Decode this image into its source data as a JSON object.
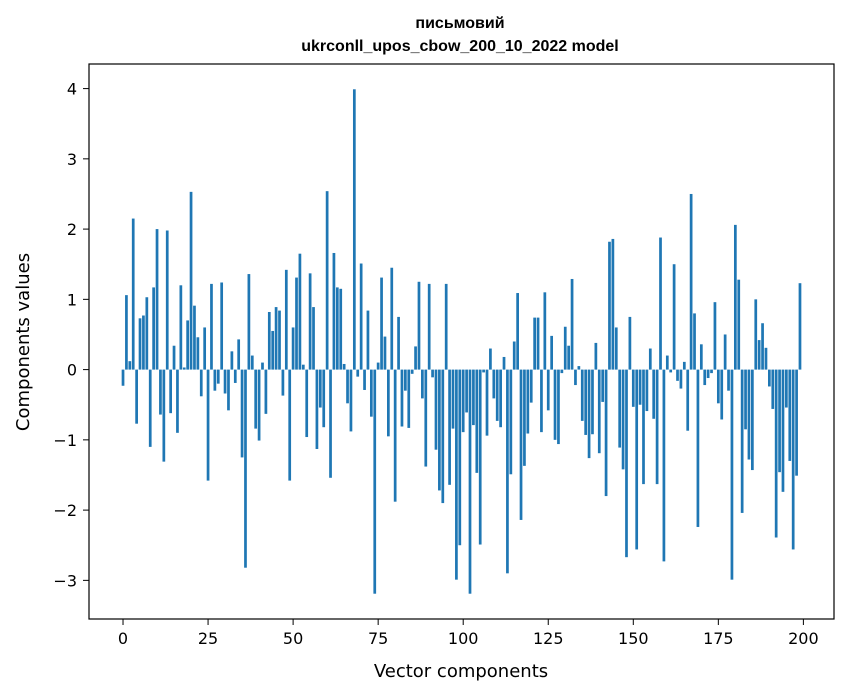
{
  "chart_data": {
    "type": "bar",
    "title_line1": "письмовий",
    "title_line2": "ukrconll_upos_cbow_200_10_2022 model",
    "xlabel": "Vector components",
    "ylabel": "Components values",
    "xlim": [
      -10.0,
      209.0
    ],
    "ylim": [
      -3.55,
      4.35
    ],
    "xticks": [
      0,
      25,
      50,
      75,
      100,
      125,
      150,
      175,
      200
    ],
    "yticks": [
      -3,
      -2,
      -1,
      0,
      1,
      2,
      3,
      4
    ],
    "ytick_labels": [
      "−3",
      "−2",
      "−1",
      "0",
      "1",
      "2",
      "3",
      "4"
    ],
    "bar_color": "#1f77b4",
    "values": [
      -0.23,
      1.06,
      0.12,
      2.15,
      -0.77,
      0.73,
      0.77,
      1.03,
      -1.1,
      1.17,
      2.0,
      -0.64,
      -1.31,
      1.98,
      -0.62,
      0.34,
      -0.9,
      1.2,
      0.03,
      0.7,
      2.53,
      0.91,
      0.46,
      -0.38,
      0.6,
      -1.58,
      1.22,
      -0.3,
      -0.2,
      1.24,
      -0.34,
      -0.58,
      0.26,
      -0.19,
      0.43,
      -1.25,
      -2.82,
      1.36,
      0.2,
      -0.84,
      -1.01,
      0.1,
      -0.63,
      0.82,
      0.55,
      0.89,
      0.84,
      -0.37,
      1.42,
      -1.58,
      0.6,
      1.31,
      1.65,
      0.07,
      -0.96,
      1.37,
      0.89,
      -1.13,
      -0.54,
      -0.82,
      2.54,
      -1.54,
      1.66,
      1.17,
      1.15,
      0.08,
      -0.48,
      -0.88,
      3.99,
      -0.1,
      1.51,
      -0.29,
      0.84,
      -0.67,
      -3.19,
      0.1,
      1.31,
      0.47,
      -0.95,
      1.45,
      -1.88,
      0.75,
      -0.81,
      -0.3,
      -0.83,
      -0.06,
      0.33,
      1.25,
      -0.41,
      -1.38,
      1.22,
      -0.11,
      -1.14,
      -1.72,
      -1.9,
      1.22,
      -1.64,
      -0.84,
      -2.99,
      -2.5,
      -0.89,
      -0.61,
      -3.19,
      -0.79,
      -1.47,
      -2.49,
      -0.04,
      -0.94,
      0.3,
      -0.41,
      -0.73,
      -0.82,
      0.18,
      -2.9,
      -1.49,
      0.4,
      1.09,
      -2.14,
      -1.37,
      -0.91,
      -0.47,
      0.74,
      0.74,
      -0.89,
      1.1,
      -0.58,
      0.48,
      -1.0,
      -1.06,
      -0.05,
      0.61,
      0.34,
      1.29,
      -0.22,
      0.05,
      -0.73,
      -0.93,
      -1.26,
      -0.92,
      0.38,
      -1.19,
      -0.46,
      -1.8,
      1.82,
      1.86,
      0.6,
      -1.11,
      -1.42,
      -2.67,
      0.75,
      -0.53,
      -2.56,
      -0.5,
      -1.63,
      -0.59,
      0.3,
      -0.7,
      -1.63,
      1.88,
      -2.73,
      0.2,
      -0.04,
      1.5,
      -0.16,
      -0.27,
      0.11,
      -0.87,
      2.5,
      0.8,
      -2.24,
      0.36,
      -0.22,
      -0.12,
      -0.05,
      0.96,
      -0.48,
      -0.71,
      0.5,
      -0.3,
      -2.99,
      2.06,
      1.28,
      -2.04,
      -0.85,
      -1.28,
      -1.43,
      1.0,
      0.42,
      0.66,
      0.31,
      -0.24,
      -0.56,
      -2.39,
      -1.46,
      -1.74,
      -0.54,
      -1.3,
      -2.56,
      -1.51,
      1.23
    ]
  }
}
